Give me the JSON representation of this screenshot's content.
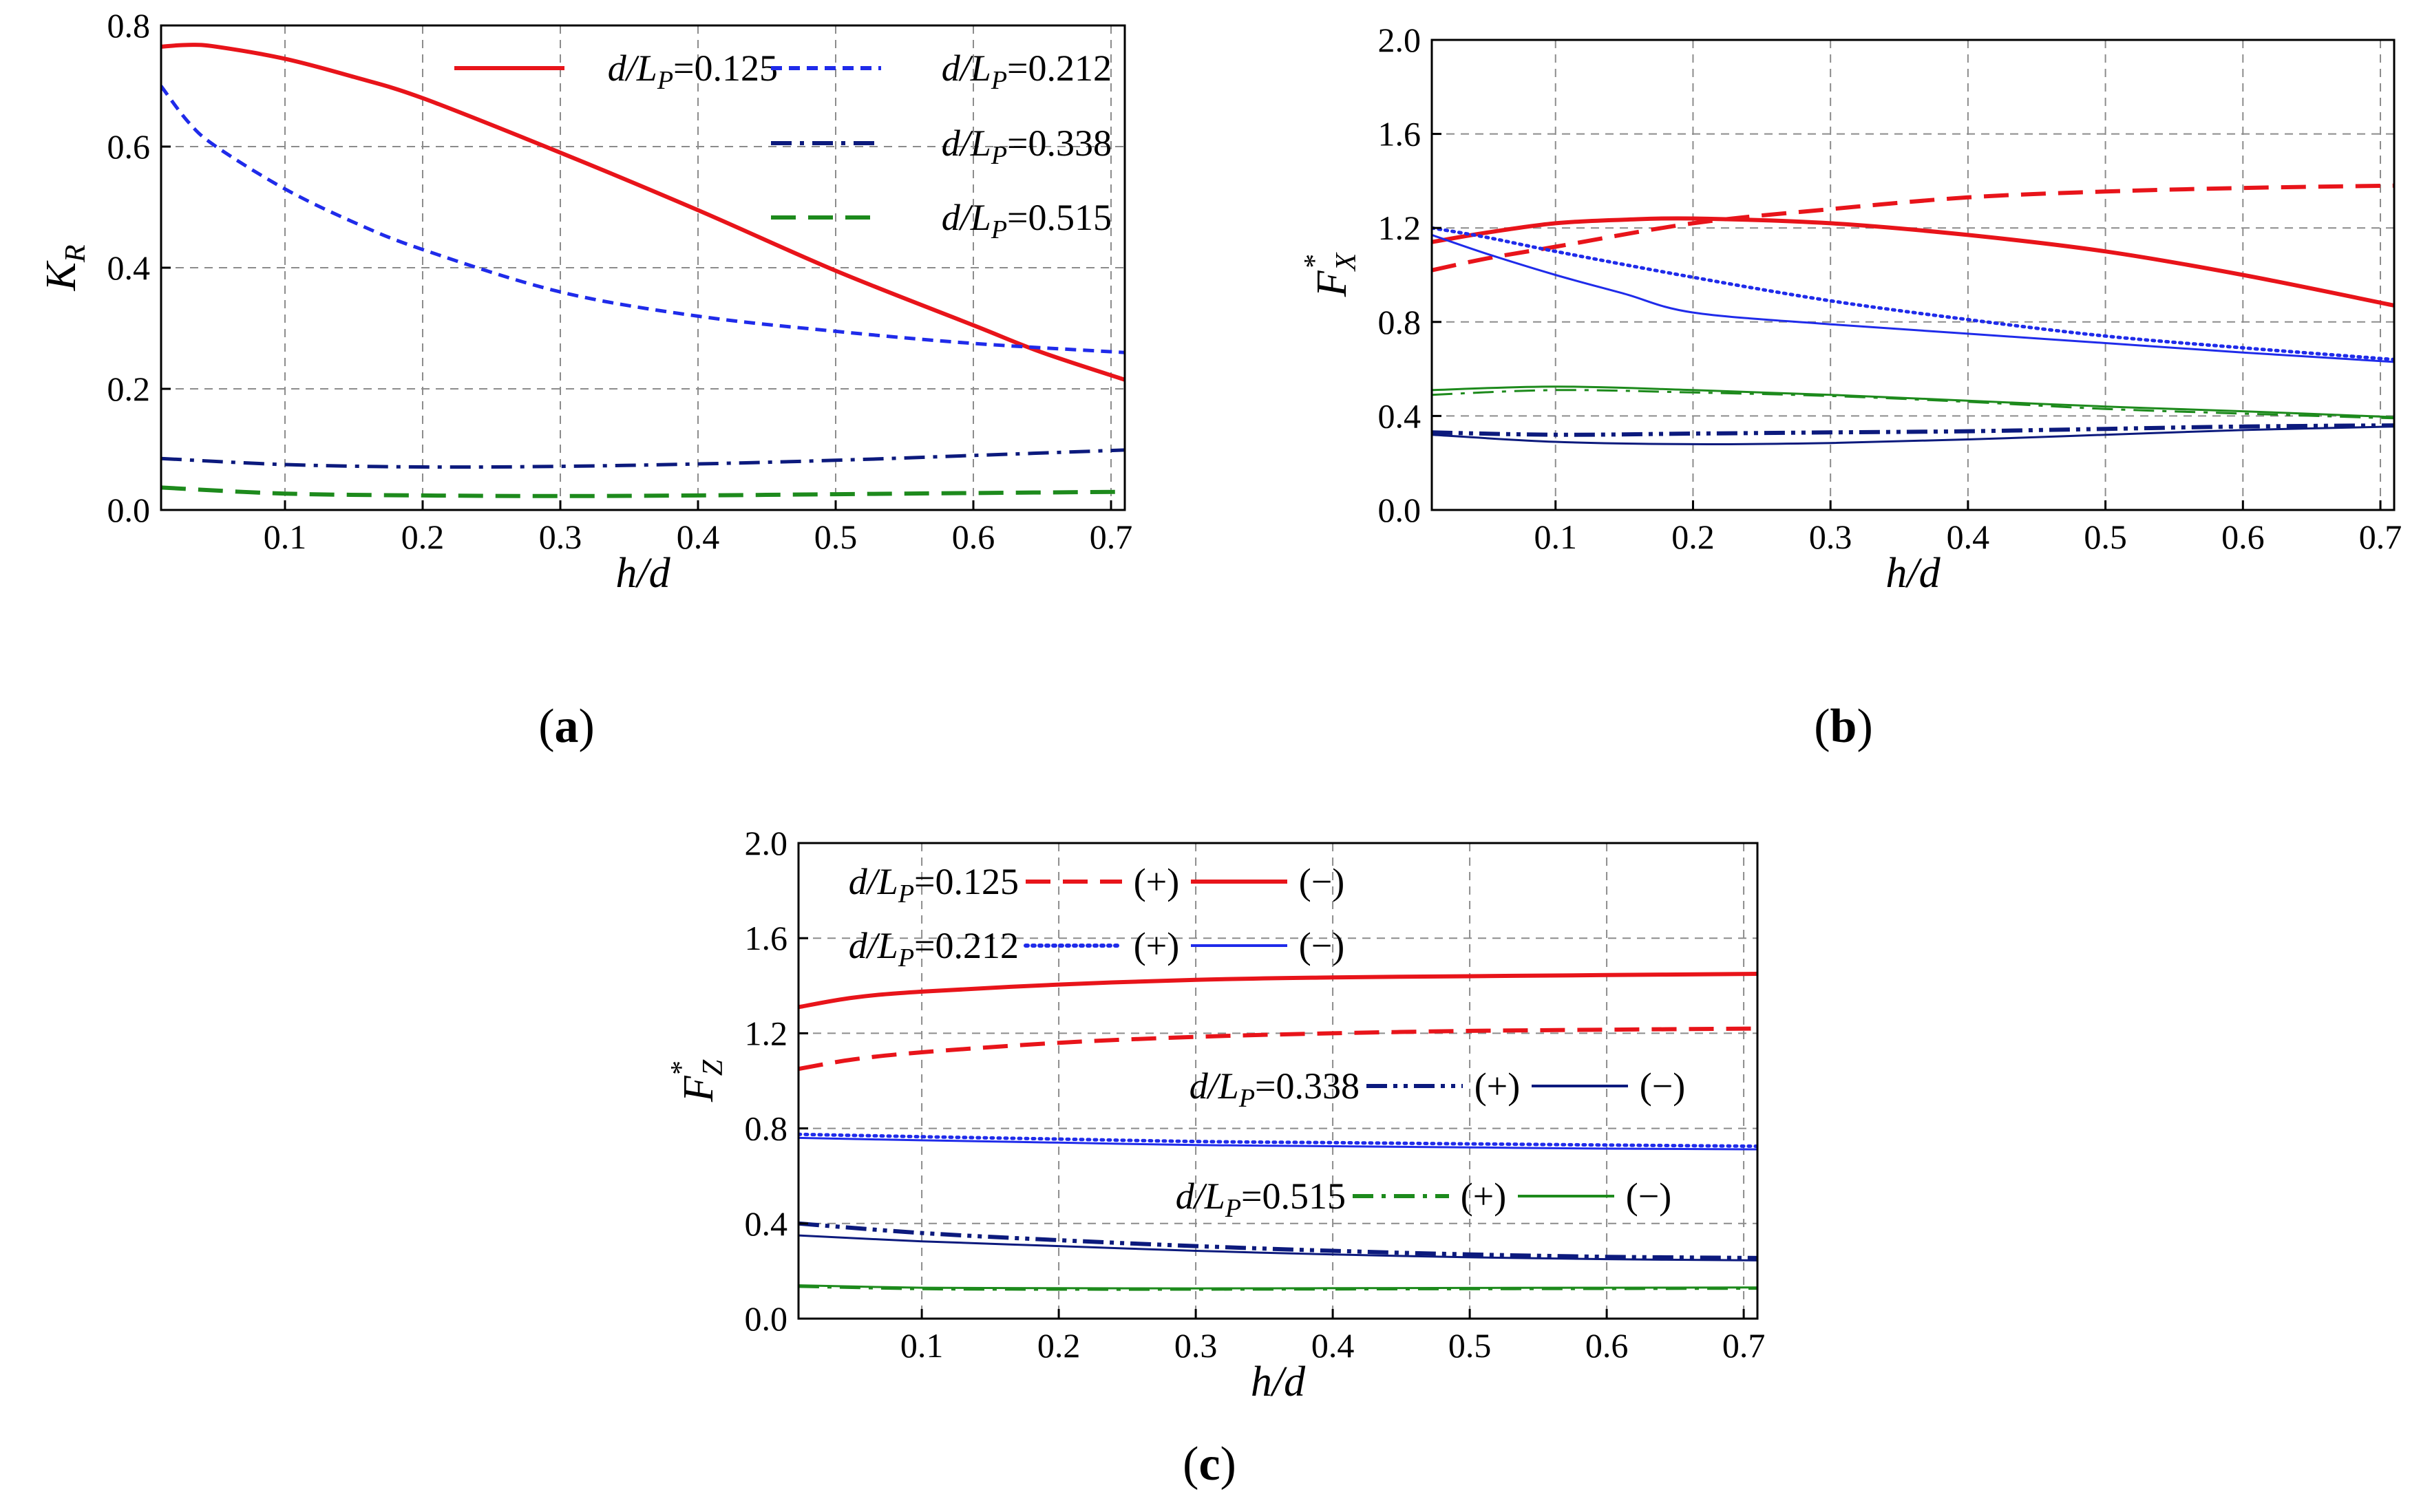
{
  "colors": {
    "red": "#e8141a",
    "blue": "#1f2bea",
    "navy": "#0c1a7d",
    "green": "#1d8a1c",
    "grid": "#8c8c8c"
  },
  "chart_data": [
    {
      "id": "a",
      "type": "line",
      "caption_letter": "a",
      "xlabel": "h/d",
      "ylabel_main": "K",
      "ylabel_sub": "R",
      "ylabel_sup": "",
      "xlim": [
        0.01,
        0.71
      ],
      "ylim": [
        0.0,
        0.8
      ],
      "xticks": [
        0.1,
        0.2,
        0.3,
        0.4,
        0.5,
        0.6,
        0.7
      ],
      "xtick_labels": [
        "0.1",
        "0.2",
        "0.3",
        "0.4",
        "0.5",
        "0.6",
        "0.7"
      ],
      "yticks": [
        0.0,
        0.2,
        0.4,
        0.6,
        0.8
      ],
      "ytick_labels": [
        "0.0",
        "0.2",
        "0.4",
        "0.6",
        "0.8"
      ],
      "legend": [
        {
          "prefix": "d/L",
          "sub": "P",
          "value": "=0.125",
          "color": "red",
          "dash": "solid"
        },
        {
          "prefix": "d/L",
          "sub": "P",
          "value": "=0.212",
          "color": "blue",
          "dash": "short"
        },
        {
          "prefix": "d/L",
          "sub": "P",
          "value": "=0.338",
          "color": "navy",
          "dash": "dashdot"
        },
        {
          "prefix": "d/L",
          "sub": "P",
          "value": "=0.515",
          "color": "green",
          "dash": "long"
        }
      ],
      "series": [
        {
          "name": "d/LP=0.125",
          "color": "red",
          "dash": "solid",
          "width": 6,
          "x": [
            0.01,
            0.03,
            0.05,
            0.1,
            0.15,
            0.2,
            0.3,
            0.4,
            0.5,
            0.6,
            0.65,
            0.71
          ],
          "y": [
            0.765,
            0.768,
            0.765,
            0.745,
            0.715,
            0.68,
            0.59,
            0.495,
            0.395,
            0.305,
            0.26,
            0.215
          ]
        },
        {
          "name": "d/LP=0.212",
          "color": "blue",
          "dash": "short",
          "width": 5,
          "x": [
            0.01,
            0.03,
            0.05,
            0.1,
            0.15,
            0.2,
            0.3,
            0.4,
            0.5,
            0.6,
            0.71
          ],
          "y": [
            0.7,
            0.64,
            0.6,
            0.53,
            0.475,
            0.43,
            0.36,
            0.32,
            0.295,
            0.275,
            0.26
          ]
        },
        {
          "name": "d/LP=0.338",
          "color": "navy",
          "dash": "dashdot",
          "width": 5,
          "x": [
            0.01,
            0.1,
            0.2,
            0.3,
            0.4,
            0.5,
            0.6,
            0.71
          ],
          "y": [
            0.085,
            0.075,
            0.071,
            0.072,
            0.076,
            0.082,
            0.09,
            0.099
          ]
        },
        {
          "name": "d/LP=0.515",
          "color": "green",
          "dash": "long",
          "width": 6,
          "x": [
            0.01,
            0.1,
            0.2,
            0.3,
            0.4,
            0.5,
            0.6,
            0.71
          ],
          "y": [
            0.037,
            0.027,
            0.024,
            0.023,
            0.024,
            0.026,
            0.028,
            0.03
          ]
        }
      ]
    },
    {
      "id": "b",
      "type": "line",
      "caption_letter": "b",
      "xlabel": "h/d",
      "ylabel_main": "F",
      "ylabel_sub": "X",
      "ylabel_sup": "*",
      "xlim": [
        0.01,
        0.71
      ],
      "ylim": [
        0.0,
        2.0
      ],
      "xticks": [
        0.1,
        0.2,
        0.3,
        0.4,
        0.5,
        0.6,
        0.7
      ],
      "xtick_labels": [
        "0.1",
        "0.2",
        "0.3",
        "0.4",
        "0.5",
        "0.6",
        "0.7"
      ],
      "yticks": [
        0.0,
        0.4,
        0.8,
        1.2,
        1.6,
        2.0
      ],
      "ytick_labels": [
        "0.0",
        "0.4",
        "0.8",
        "1.2",
        "1.6",
        "2.0"
      ],
      "legend": [],
      "series": [
        {
          "name": "d/LP=0.125 (+)",
          "color": "red",
          "dash": "long",
          "width": 6,
          "x": [
            0.01,
            0.05,
            0.1,
            0.2,
            0.3,
            0.4,
            0.5,
            0.6,
            0.71
          ],
          "y": [
            1.02,
            1.07,
            1.12,
            1.22,
            1.28,
            1.33,
            1.355,
            1.37,
            1.38
          ]
        },
        {
          "name": "d/LP=0.125 (−)",
          "color": "red",
          "dash": "solid",
          "width": 6,
          "x": [
            0.01,
            0.05,
            0.1,
            0.15,
            0.2,
            0.3,
            0.4,
            0.5,
            0.6,
            0.71
          ],
          "y": [
            1.14,
            1.18,
            1.22,
            1.235,
            1.24,
            1.22,
            1.17,
            1.1,
            1.0,
            0.87
          ]
        },
        {
          "name": "d/LP=0.212 (+)",
          "color": "blue",
          "dash": "dotted",
          "width": 5,
          "x": [
            0.01,
            0.05,
            0.1,
            0.2,
            0.3,
            0.4,
            0.5,
            0.6,
            0.71
          ],
          "y": [
            1.2,
            1.16,
            1.1,
            0.99,
            0.89,
            0.81,
            0.74,
            0.69,
            0.64
          ]
        },
        {
          "name": "d/LP=0.212 (−)",
          "color": "blue",
          "dash": "solid",
          "width": 3,
          "x": [
            0.01,
            0.05,
            0.1,
            0.15,
            0.2,
            0.3,
            0.4,
            0.5,
            0.6,
            0.71
          ],
          "y": [
            1.17,
            1.09,
            1.0,
            0.92,
            0.84,
            0.79,
            0.75,
            0.71,
            0.67,
            0.63
          ]
        },
        {
          "name": "d/LP=0.338 (+)",
          "color": "navy",
          "dash": "dashdotdot",
          "width": 6,
          "x": [
            0.01,
            0.1,
            0.2,
            0.3,
            0.4,
            0.5,
            0.6,
            0.71
          ],
          "y": [
            0.33,
            0.32,
            0.325,
            0.33,
            0.335,
            0.345,
            0.355,
            0.36
          ]
        },
        {
          "name": "d/LP=0.338 (−)",
          "color": "navy",
          "dash": "solid",
          "width": 3,
          "x": [
            0.01,
            0.1,
            0.2,
            0.3,
            0.4,
            0.5,
            0.6,
            0.71
          ],
          "y": [
            0.32,
            0.29,
            0.28,
            0.285,
            0.3,
            0.32,
            0.34,
            0.355
          ]
        },
        {
          "name": "d/LP=0.515 (+)",
          "color": "green",
          "dash": "dashdot",
          "width": 3,
          "x": [
            0.01,
            0.1,
            0.2,
            0.3,
            0.4,
            0.5,
            0.6,
            0.71
          ],
          "y": [
            0.49,
            0.51,
            0.5,
            0.485,
            0.46,
            0.43,
            0.41,
            0.39
          ]
        },
        {
          "name": "d/LP=0.515 (−)",
          "color": "green",
          "dash": "solid",
          "width": 3,
          "x": [
            0.01,
            0.1,
            0.2,
            0.3,
            0.4,
            0.5,
            0.6,
            0.71
          ],
          "y": [
            0.51,
            0.525,
            0.51,
            0.49,
            0.465,
            0.44,
            0.42,
            0.395
          ]
        }
      ]
    },
    {
      "id": "c",
      "type": "line",
      "caption_letter": "c",
      "xlabel": "h/d",
      "ylabel_main": "F",
      "ylabel_sub": "Z",
      "ylabel_sup": "*",
      "xlim": [
        0.01,
        0.71
      ],
      "ylim": [
        0.0,
        2.0
      ],
      "xticks": [
        0.1,
        0.2,
        0.3,
        0.4,
        0.5,
        0.6,
        0.7
      ],
      "xtick_labels": [
        "0.1",
        "0.2",
        "0.3",
        "0.4",
        "0.5",
        "0.6",
        "0.7"
      ],
      "yticks": [
        0.0,
        0.4,
        0.8,
        1.2,
        1.6,
        2.0
      ],
      "ytick_labels": [
        "0.0",
        "0.4",
        "0.8",
        "1.2",
        "1.6",
        "2.0"
      ],
      "legend_groups": [
        {
          "prefix": "d/L",
          "sub": "P",
          "value": "=0.125",
          "plus_label": "(+)",
          "minus_label": "(−)",
          "color": "red",
          "plus_dash": "long",
          "minus_dash": "solid"
        },
        {
          "prefix": "d/L",
          "sub": "P",
          "value": "=0.212",
          "plus_label": "(+)",
          "minus_label": "(−)",
          "color": "blue",
          "plus_dash": "dotted",
          "minus_dash": "solid"
        },
        {
          "prefix": "d/L",
          "sub": "P",
          "value": "=0.338",
          "plus_label": "(+)",
          "minus_label": "(−)",
          "color": "navy",
          "plus_dash": "dashdotdot",
          "minus_dash": "solid"
        },
        {
          "prefix": "d/L",
          "sub": "P",
          "value": "=0.515",
          "plus_label": "(+)",
          "minus_label": "(−)",
          "color": "green",
          "plus_dash": "dashdot",
          "minus_dash": "solid"
        }
      ],
      "series": [
        {
          "name": "d/LP=0.125 (−)",
          "color": "red",
          "dash": "solid",
          "width": 6,
          "x": [
            0.01,
            0.05,
            0.1,
            0.2,
            0.3,
            0.4,
            0.5,
            0.6,
            0.71
          ],
          "y": [
            1.31,
            1.35,
            1.375,
            1.405,
            1.425,
            1.435,
            1.44,
            1.445,
            1.45
          ]
        },
        {
          "name": "d/LP=0.125 (+)",
          "color": "red",
          "dash": "long",
          "width": 6,
          "x": [
            0.01,
            0.05,
            0.1,
            0.2,
            0.3,
            0.4,
            0.5,
            0.6,
            0.71
          ],
          "y": [
            1.05,
            1.09,
            1.12,
            1.16,
            1.185,
            1.2,
            1.21,
            1.215,
            1.22
          ]
        },
        {
          "name": "d/LP=0.212 (+)",
          "color": "blue",
          "dash": "dotted",
          "width": 5,
          "x": [
            0.01,
            0.1,
            0.2,
            0.3,
            0.4,
            0.5,
            0.6,
            0.71
          ],
          "y": [
            0.775,
            0.765,
            0.755,
            0.745,
            0.74,
            0.735,
            0.73,
            0.725
          ]
        },
        {
          "name": "d/LP=0.212 (−)",
          "color": "blue",
          "dash": "solid",
          "width": 3,
          "x": [
            0.01,
            0.1,
            0.2,
            0.3,
            0.4,
            0.5,
            0.6,
            0.71
          ],
          "y": [
            0.76,
            0.75,
            0.74,
            0.73,
            0.725,
            0.72,
            0.715,
            0.712
          ]
        },
        {
          "name": "d/LP=0.338 (+)",
          "color": "navy",
          "dash": "dashdotdot",
          "width": 6,
          "x": [
            0.01,
            0.1,
            0.2,
            0.3,
            0.4,
            0.5,
            0.6,
            0.71
          ],
          "y": [
            0.4,
            0.36,
            0.33,
            0.305,
            0.285,
            0.27,
            0.26,
            0.255
          ]
        },
        {
          "name": "d/LP=0.338 (−)",
          "color": "navy",
          "dash": "solid",
          "width": 3,
          "x": [
            0.01,
            0.1,
            0.2,
            0.3,
            0.4,
            0.5,
            0.6,
            0.71
          ],
          "y": [
            0.35,
            0.325,
            0.305,
            0.285,
            0.27,
            0.258,
            0.25,
            0.245
          ]
        },
        {
          "name": "d/LP=0.515 (+)",
          "color": "green",
          "dash": "dashdot",
          "width": 4,
          "x": [
            0.01,
            0.1,
            0.2,
            0.3,
            0.4,
            0.5,
            0.6,
            0.71
          ],
          "y": [
            0.135,
            0.125,
            0.123,
            0.123,
            0.124,
            0.125,
            0.126,
            0.127
          ]
        },
        {
          "name": "d/LP=0.515 (−)",
          "color": "green",
          "dash": "solid",
          "width": 3,
          "x": [
            0.01,
            0.1,
            0.2,
            0.3,
            0.4,
            0.5,
            0.6,
            0.71
          ],
          "y": [
            0.14,
            0.13,
            0.128,
            0.127,
            0.128,
            0.129,
            0.13,
            0.131
          ]
        }
      ]
    }
  ]
}
